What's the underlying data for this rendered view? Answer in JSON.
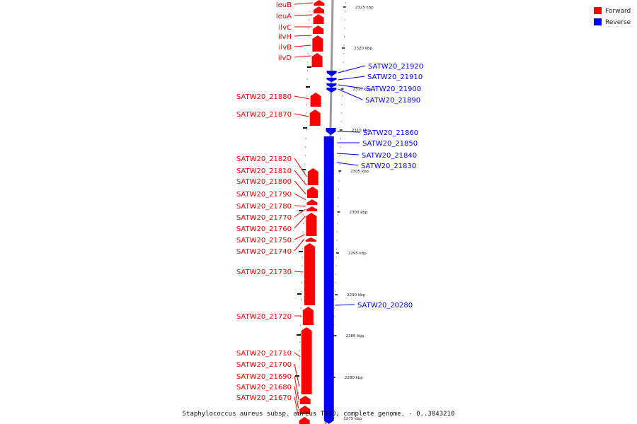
{
  "caption": "Staphylococcus aureus subsp. aureus TW20, complete genome. - 0..3043210",
  "legend": [
    {
      "label": "Forward",
      "color": "#ff0000"
    },
    {
      "label": "Reverse",
      "color": "#0000ff"
    }
  ],
  "colors": {
    "forward": "#ff0000",
    "reverse": "#0000ff",
    "backbone": "#9a9a9a",
    "tick": "#111111"
  },
  "scale": {
    "unit": "kbp",
    "labels": [
      "2325 kbp",
      "2320 kbp",
      "2315 kbp",
      "2310 kbp",
      "2305 kbp",
      "2300 kbp",
      "2295 kbp",
      "2290 kbp",
      "2285 kbp",
      "2280 kbp",
      "2275 kbp"
    ]
  },
  "forward_genes": [
    "leuB",
    "leuA",
    "ilvC",
    "ilvH",
    "ilvB",
    "ilvD",
    "SATW20_21880",
    "SATW20_21870",
    "SATW20_21820",
    "SATW20_21810",
    "SATW20_21800",
    "SATW20_21790",
    "SATW20_21780",
    "SATW20_21770",
    "SATW20_21760",
    "SATW20_21750",
    "SATW20_21740",
    "SATW20_21730",
    "SATW20_21720",
    "SATW20_21710",
    "SATW20_21700",
    "SATW20_21690",
    "SATW20_21680",
    "SATW20_21670"
  ],
  "reverse_genes": [
    "SATW20_21920",
    "SATW20_21910",
    "SATW20_21900",
    "SATW20_21890",
    "SATW20_21860",
    "SATW20_21850",
    "SATW20_21840",
    "SATW20_21830",
    "SATW20_20280"
  ]
}
